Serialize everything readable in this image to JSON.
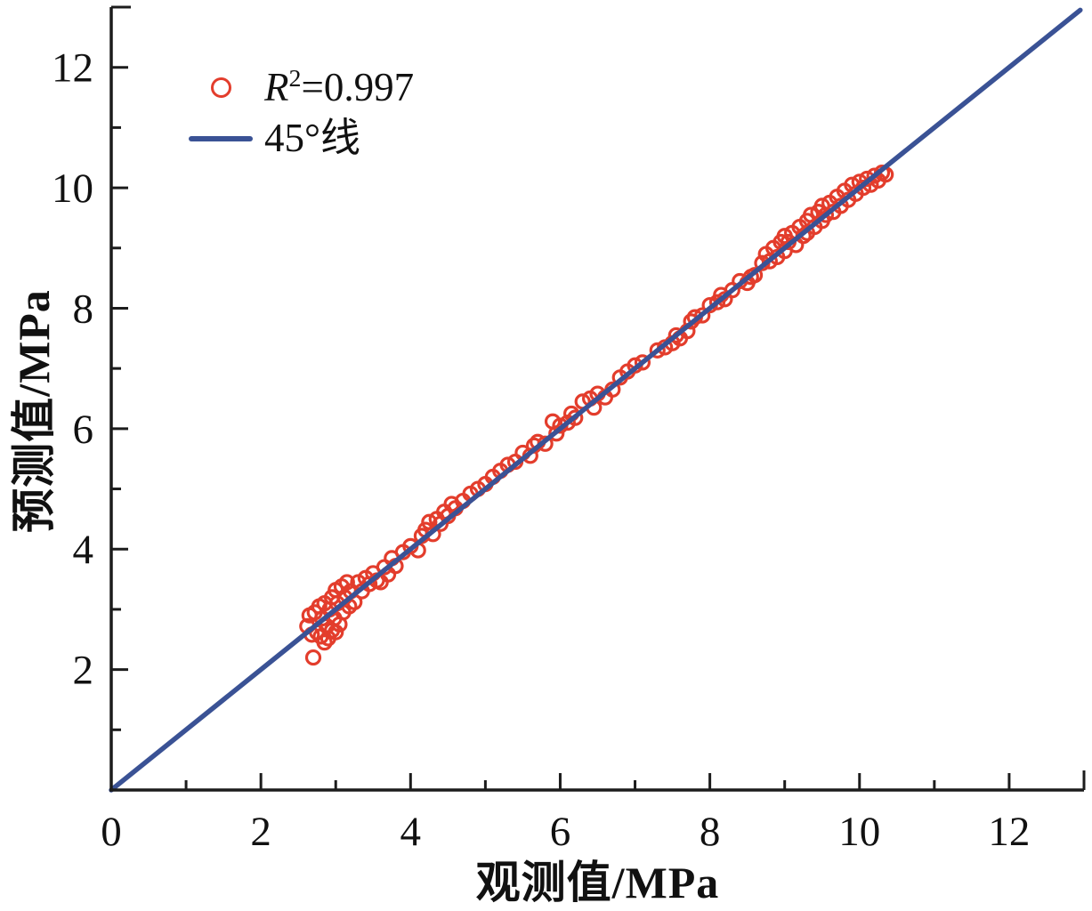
{
  "legend": {
    "r2_base": "R",
    "r2_sup": "2",
    "r2_rest": "=0.997",
    "line_label": "45°线"
  },
  "colors": {
    "scatter": "#e33d2c",
    "line": "#3a5295",
    "axis": "#1c1c1c",
    "text": "#111111"
  },
  "chart_data": {
    "type": "scatter",
    "title": "",
    "xlabel": "观测值/MPa",
    "ylabel": "预测值/MPa",
    "xlim": [
      0,
      13
    ],
    "ylim": [
      0,
      13
    ],
    "grid": false,
    "legend_position": "upper-left-inside",
    "x_major_ticks": [
      0,
      2,
      4,
      6,
      8,
      10,
      12
    ],
    "x_minor_ticks": [
      1,
      3,
      5,
      7,
      9,
      11
    ],
    "x_end_tick": 13,
    "y_major_ticks": [
      2,
      4,
      6,
      8,
      10,
      12
    ],
    "y_minor_ticks": [
      1,
      3,
      5,
      7,
      9,
      11
    ],
    "y_end_tick": 13,
    "series": [
      {
        "name": "R²=0.997",
        "type": "scatter",
        "marker": "open-circle",
        "color": "#e33d2c",
        "points": [
          [
            2.62,
            2.72
          ],
          [
            2.65,
            2.9
          ],
          [
            2.68,
            2.58
          ],
          [
            2.7,
            2.2
          ],
          [
            2.72,
            2.95
          ],
          [
            2.75,
            2.62
          ],
          [
            2.78,
            3.05
          ],
          [
            2.8,
            2.55
          ],
          [
            2.82,
            2.85
          ],
          [
            2.85,
            2.45
          ],
          [
            2.85,
            3.1
          ],
          [
            2.88,
            2.72
          ],
          [
            2.9,
            2.52
          ],
          [
            2.92,
            3.0
          ],
          [
            2.95,
            2.65
          ],
          [
            2.95,
            3.2
          ],
          [
            2.98,
            2.85
          ],
          [
            3.0,
            2.62
          ],
          [
            3.0,
            3.32
          ],
          [
            3.02,
            3.1
          ],
          [
            3.05,
            2.75
          ],
          [
            3.08,
            3.38
          ],
          [
            3.1,
            2.95
          ],
          [
            3.12,
            3.2
          ],
          [
            3.15,
            3.45
          ],
          [
            3.18,
            3.05
          ],
          [
            3.2,
            3.3
          ],
          [
            3.25,
            3.12
          ],
          [
            3.3,
            3.45
          ],
          [
            3.35,
            3.3
          ],
          [
            3.4,
            3.52
          ],
          [
            3.45,
            3.42
          ],
          [
            3.5,
            3.6
          ],
          [
            3.55,
            3.48
          ],
          [
            3.6,
            3.45
          ],
          [
            3.65,
            3.7
          ],
          [
            3.7,
            3.58
          ],
          [
            3.75,
            3.85
          ],
          [
            3.8,
            3.72
          ],
          [
            3.9,
            3.95
          ],
          [
            4.0,
            4.05
          ],
          [
            4.1,
            3.98
          ],
          [
            4.15,
            4.22
          ],
          [
            4.2,
            4.32
          ],
          [
            4.25,
            4.45
          ],
          [
            4.3,
            4.25
          ],
          [
            4.35,
            4.5
          ],
          [
            4.4,
            4.42
          ],
          [
            4.45,
            4.62
          ],
          [
            4.5,
            4.55
          ],
          [
            4.55,
            4.75
          ],
          [
            4.6,
            4.68
          ],
          [
            4.7,
            4.8
          ],
          [
            4.8,
            4.92
          ],
          [
            4.9,
            5.0
          ],
          [
            5.0,
            5.08
          ],
          [
            5.1,
            5.2
          ],
          [
            5.2,
            5.3
          ],
          [
            5.3,
            5.4
          ],
          [
            5.4,
            5.45
          ],
          [
            5.5,
            5.6
          ],
          [
            5.6,
            5.55
          ],
          [
            5.65,
            5.72
          ],
          [
            5.7,
            5.78
          ],
          [
            5.8,
            5.75
          ],
          [
            5.9,
            6.12
          ],
          [
            5.95,
            5.92
          ],
          [
            6.0,
            6.05
          ],
          [
            6.1,
            6.1
          ],
          [
            6.15,
            6.25
          ],
          [
            6.2,
            6.18
          ],
          [
            6.3,
            6.45
          ],
          [
            6.4,
            6.5
          ],
          [
            6.45,
            6.35
          ],
          [
            6.5,
            6.58
          ],
          [
            6.6,
            6.52
          ],
          [
            6.7,
            6.65
          ],
          [
            6.8,
            6.85
          ],
          [
            6.9,
            6.95
          ],
          [
            7.0,
            7.05
          ],
          [
            7.1,
            7.1
          ],
          [
            7.3,
            7.3
          ],
          [
            7.4,
            7.35
          ],
          [
            7.5,
            7.42
          ],
          [
            7.55,
            7.55
          ],
          [
            7.6,
            7.5
          ],
          [
            7.7,
            7.62
          ],
          [
            7.75,
            7.78
          ],
          [
            7.8,
            7.85
          ],
          [
            7.9,
            7.88
          ],
          [
            8.0,
            8.05
          ],
          [
            8.1,
            8.1
          ],
          [
            8.15,
            8.22
          ],
          [
            8.2,
            8.15
          ],
          [
            8.3,
            8.3
          ],
          [
            8.4,
            8.45
          ],
          [
            8.5,
            8.42
          ],
          [
            8.55,
            8.52
          ],
          [
            8.6,
            8.55
          ],
          [
            8.7,
            8.75
          ],
          [
            8.75,
            8.9
          ],
          [
            8.8,
            8.78
          ],
          [
            8.85,
            9.0
          ],
          [
            8.9,
            8.85
          ],
          [
            8.95,
            9.1
          ],
          [
            9.0,
            8.95
          ],
          [
            9.0,
            9.2
          ],
          [
            9.05,
            9.1
          ],
          [
            9.1,
            9.25
          ],
          [
            9.15,
            9.05
          ],
          [
            9.2,
            9.35
          ],
          [
            9.25,
            9.2
          ],
          [
            9.3,
            9.45
          ],
          [
            9.3,
            9.25
          ],
          [
            9.35,
            9.55
          ],
          [
            9.4,
            9.35
          ],
          [
            9.45,
            9.6
          ],
          [
            9.5,
            9.45
          ],
          [
            9.5,
            9.7
          ],
          [
            9.55,
            9.55
          ],
          [
            9.6,
            9.75
          ],
          [
            9.65,
            9.6
          ],
          [
            9.7,
            9.85
          ],
          [
            9.75,
            9.7
          ],
          [
            9.8,
            9.95
          ],
          [
            9.85,
            9.8
          ],
          [
            9.9,
            10.05
          ],
          [
            9.95,
            9.9
          ],
          [
            10.0,
            10.1
          ],
          [
            10.05,
            10.0
          ],
          [
            10.1,
            10.15
          ],
          [
            10.15,
            10.05
          ],
          [
            10.2,
            10.2
          ],
          [
            10.25,
            10.12
          ],
          [
            10.3,
            10.25
          ],
          [
            10.35,
            10.22
          ]
        ]
      },
      {
        "name": "45°线",
        "type": "line",
        "color": "#3a5295",
        "x": [
          0,
          12.95
        ],
        "y": [
          0,
          12.95
        ]
      }
    ]
  }
}
